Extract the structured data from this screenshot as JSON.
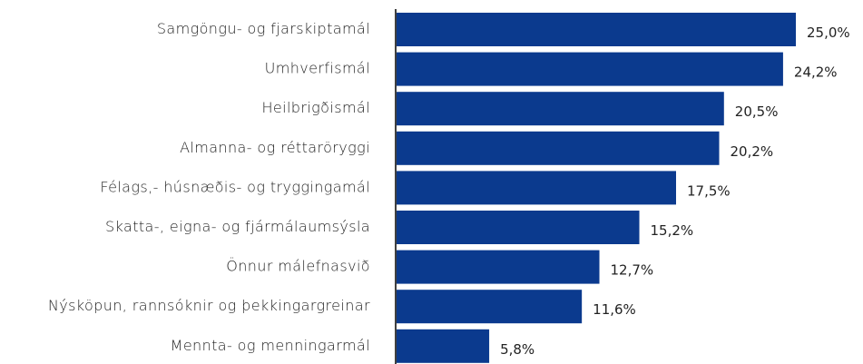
{
  "chart_data": {
    "type": "bar",
    "orientation": "horizontal",
    "categories": [
      "Samgöngu- og fjarskiptamál",
      "Umhverfismál",
      "Heilbrigðismál",
      "Almanna- og réttaröryggi",
      "Félags,- húsnæðis- og tryggingamál",
      "Skatta-, eigna- og fjármálaumsýsla",
      "Önnur málefnasvið",
      "Nýsköpun, rannsóknir og þekkingargreinar",
      "Mennta- og menningarmál"
    ],
    "values": [
      25.0,
      24.2,
      20.5,
      20.2,
      17.5,
      15.2,
      12.7,
      11.6,
      5.8
    ],
    "value_labels": [
      "25,0%",
      "24,2%",
      "20,5%",
      "20,2%",
      "17,5%",
      "15,2%",
      "12,7%",
      "11,6%",
      "5,8%"
    ],
    "color": "#0b3a8e"
  }
}
